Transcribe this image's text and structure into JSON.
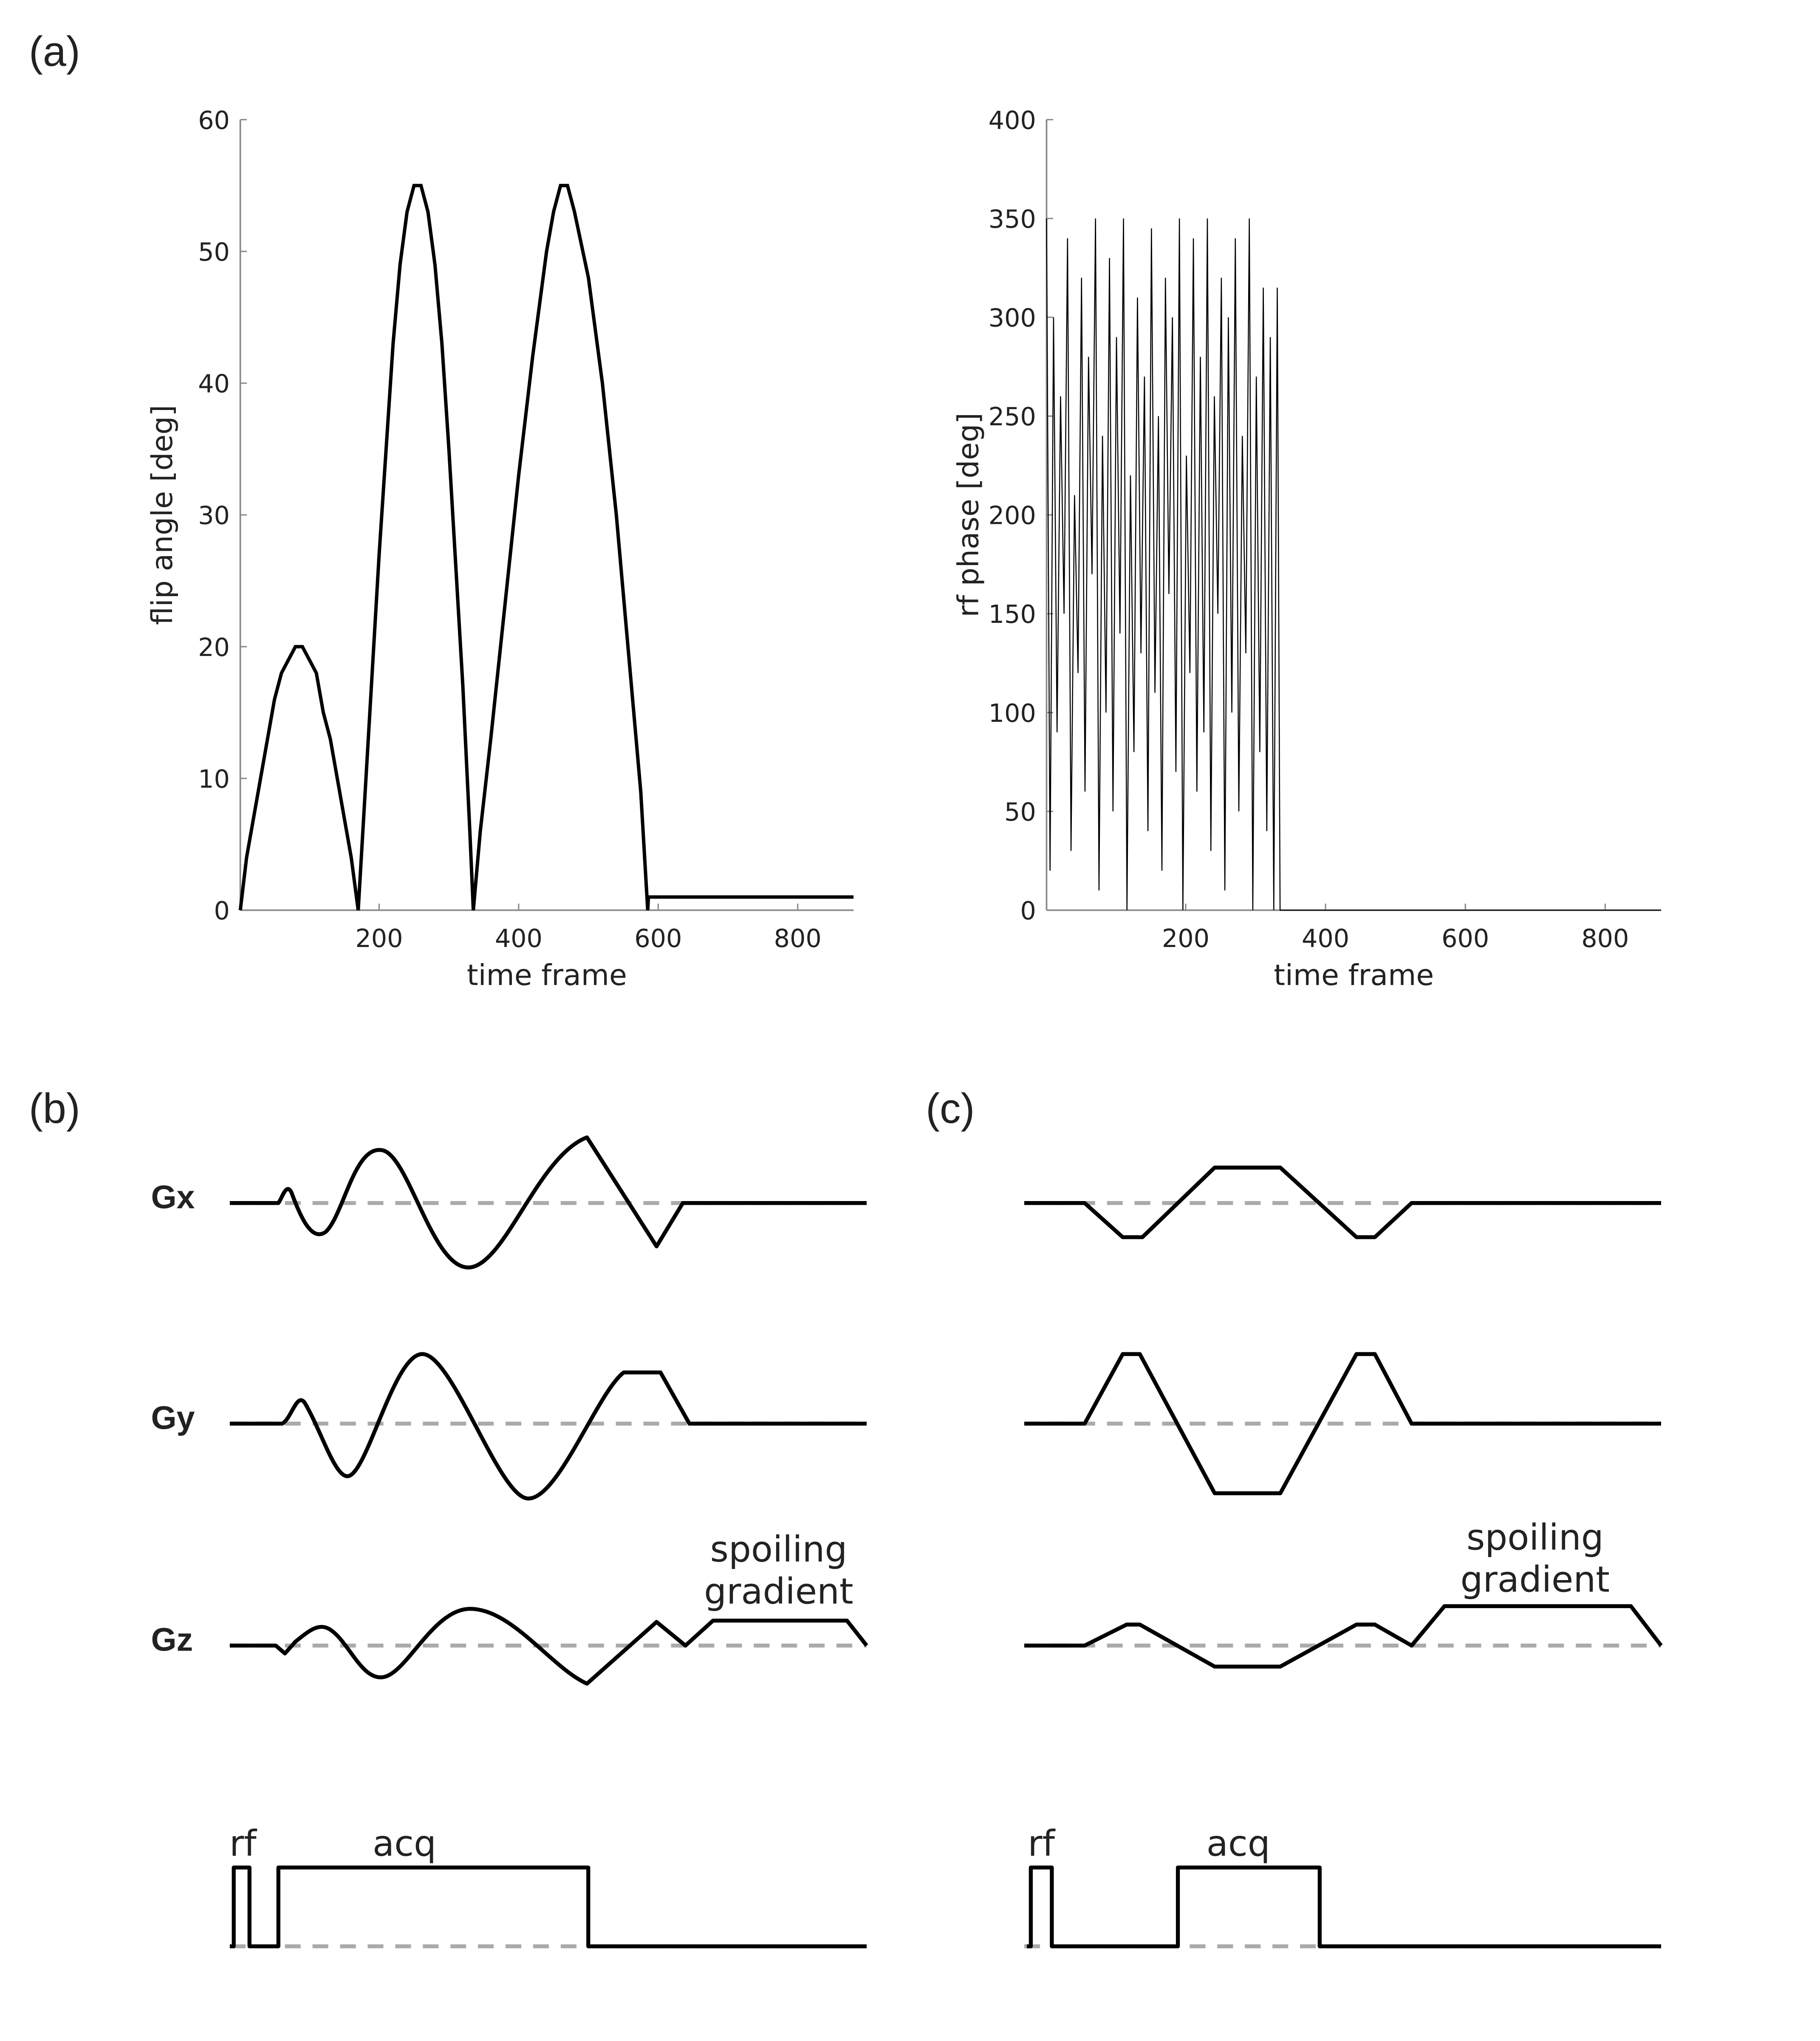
{
  "chart_data": [
    {
      "type": "line",
      "xlabel": "time frame",
      "ylabel": "flip angle [deg]",
      "x": [
        1,
        10,
        20,
        30,
        40,
        50,
        60,
        70,
        80,
        90,
        100,
        110,
        120,
        130,
        140,
        150,
        160,
        170,
        180,
        190,
        200,
        210,
        220,
        230,
        240,
        250,
        260,
        270,
        280,
        290,
        300,
        310,
        320,
        330,
        335,
        345,
        360,
        380,
        400,
        420,
        440,
        450,
        460,
        470,
        480,
        500,
        520,
        540,
        560,
        575,
        585,
        586,
        880
      ],
      "series": [
        {
          "color": "#000000",
          "values": [
            0,
            4,
            7,
            10,
            13,
            16,
            18,
            19,
            20,
            20,
            19,
            18,
            15,
            13,
            10,
            7,
            4,
            0,
            9,
            18,
            27,
            35,
            43,
            49,
            53,
            55,
            55,
            53,
            49,
            43,
            35,
            26,
            17,
            6,
            0,
            6,
            13,
            23,
            33,
            42,
            50,
            53,
            55,
            55,
            53,
            48,
            40,
            30,
            18,
            9,
            0,
            1,
            1
          ]
        }
      ],
      "xlim": [
        1,
        880
      ],
      "ylim": [
        0,
        60
      ],
      "xticks": [
        200,
        400,
        600,
        800
      ],
      "yticks": [
        0,
        10,
        20,
        30,
        40,
        50,
        60
      ]
    },
    {
      "type": "line",
      "xlabel": "time frame",
      "ylabel": "rf phase [deg]",
      "x": [
        1,
        6,
        11,
        16,
        21,
        26,
        31,
        36,
        41,
        46,
        51,
        56,
        61,
        66,
        71,
        76,
        81,
        86,
        91,
        96,
        101,
        106,
        111,
        116,
        121,
        126,
        131,
        136,
        141,
        146,
        151,
        156,
        161,
        166,
        171,
        176,
        181,
        186,
        191,
        196,
        201,
        206,
        211,
        216,
        221,
        226,
        231,
        236,
        241,
        246,
        251,
        256,
        261,
        266,
        271,
        276,
        281,
        286,
        291,
        296,
        301,
        306,
        311,
        316,
        321,
        326,
        331,
        335,
        880
      ],
      "series": [
        {
          "color": "#000000",
          "values": [
            350,
            20,
            300,
            90,
            260,
            150,
            340,
            30,
            210,
            120,
            320,
            60,
            280,
            170,
            350,
            10,
            240,
            100,
            330,
            50,
            290,
            140,
            350,
            0,
            220,
            80,
            310,
            130,
            270,
            40,
            345,
            110,
            250,
            20,
            320,
            160,
            300,
            70,
            350,
            0,
            230,
            120,
            340,
            60,
            280,
            90,
            350,
            30,
            260,
            150,
            320,
            10,
            300,
            100,
            340,
            50,
            240,
            130,
            350,
            0,
            270,
            80,
            315,
            40,
            290,
            0,
            315,
            0,
            0
          ]
        }
      ],
      "xlim": [
        1,
        880
      ],
      "ylim": [
        0,
        400
      ],
      "xticks": [
        200,
        400,
        600,
        800
      ],
      "yticks": [
        0,
        50,
        100,
        150,
        200,
        250,
        300,
        350,
        400
      ]
    }
  ],
  "panel_labels": [
    "(a)",
    "(b)",
    "(c)"
  ],
  "diagram_b": {
    "gradient_labels": [
      "Gx",
      "Gy",
      "Gz"
    ],
    "rf_label": "rf",
    "acq_label": "acq",
    "annotation": [
      "spoiling",
      "gradient"
    ]
  },
  "diagram_c": {
    "rf_label": "rf",
    "acq_label": "acq",
    "annotation": [
      "spoiling",
      "gradient"
    ]
  }
}
